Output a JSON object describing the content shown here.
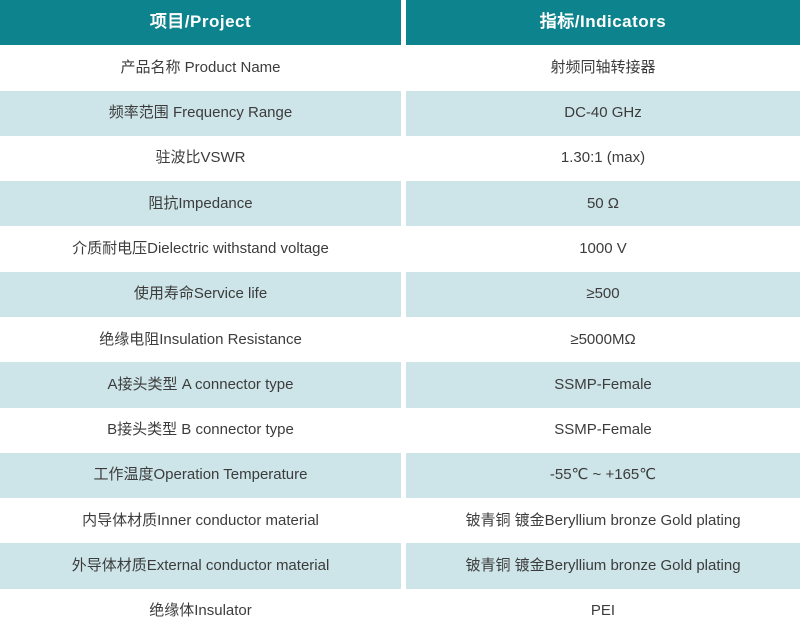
{
  "colors": {
    "header_bg": "#0d838d",
    "header_text": "#ffffff",
    "stripe_cyan": "#cde4e8",
    "stripe_white": "#ffffff",
    "body_text": "#3c3c3c"
  },
  "header": {
    "project": "项目/Project",
    "indicator": "指标/Indicators"
  },
  "rows": [
    {
      "project": "产品名称 Product Name",
      "indicator": "射频同轴转接器"
    },
    {
      "project": "频率范围 Frequency Range",
      "indicator": "DC-40 GHz"
    },
    {
      "project": "驻波比VSWR",
      "indicator": "1.30:1 (max)"
    },
    {
      "project": "阻抗Impedance",
      "indicator": "50 Ω"
    },
    {
      "project": "介质耐电压Dielectric withstand voltage",
      "indicator": "1000 V"
    },
    {
      "project": "使用寿命Service life",
      "indicator": "≥500"
    },
    {
      "project": "绝缘电阻Insulation Resistance",
      "indicator": "≥5000MΩ"
    },
    {
      "project": "A接头类型 A connector type",
      "indicator": "SSMP-Female"
    },
    {
      "project": "B接头类型 B connector type",
      "indicator": "SSMP-Female"
    },
    {
      "project": "工作温度Operation Temperature",
      "indicator": "-55℃ ~ +165℃"
    },
    {
      "project": "内导体材质Inner conductor material",
      "indicator": "铍青铜 镀金Beryllium bronze Gold plating"
    },
    {
      "project": "外导体材质External conductor material",
      "indicator": "铍青铜 镀金Beryllium bronze Gold plating"
    },
    {
      "project": "绝缘体Insulator",
      "indicator": "PEI"
    }
  ]
}
